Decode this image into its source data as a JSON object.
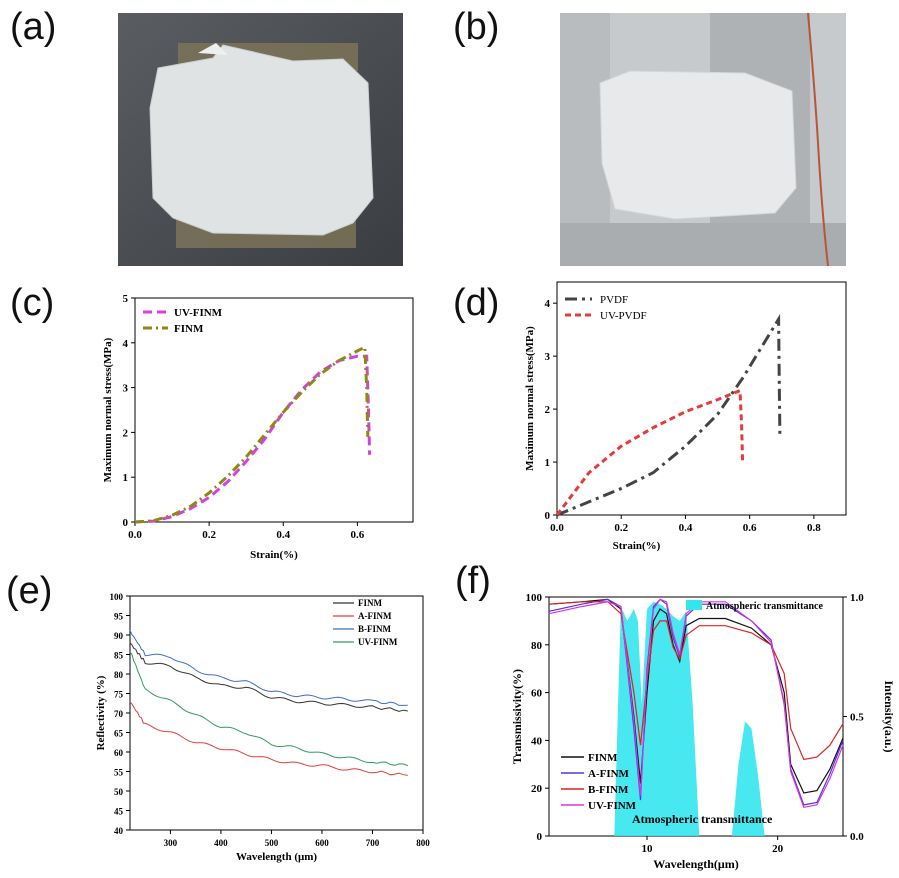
{
  "panel_labels": {
    "a": "(a)",
    "b": "(b)",
    "c": "(c)",
    "d": "(d)",
    "e": "(e)",
    "f": "(f)"
  },
  "colors": {
    "uv_finm_c": "#d63fe0",
    "finm_c": "#8c8a12",
    "pvdf": "#444444",
    "uv_pvdf": "#e83a3a",
    "e_finm": "#333333",
    "e_afinm": "#e0403f",
    "e_bfinm": "#3c6fd0",
    "e_uvfinm": "#2e9e5e",
    "f_finm": "#111111",
    "f_afinm": "#5533dd",
    "f_bfinm": "#dd2222",
    "f_uvfinm": "#dd33dd",
    "atm": "#33e6ee"
  },
  "chart_data": [
    {
      "id": "c",
      "type": "line",
      "xlabel": "Strain(%)",
      "ylabel": "Maximum normal stress(MPa)",
      "xlim": [
        0,
        0.75
      ],
      "ylim": [
        0,
        5
      ],
      "xticks": [
        "0.0",
        "0.2",
        "0.4",
        "0.6"
      ],
      "xtick_values": [
        0,
        0.2,
        0.4,
        0.6
      ],
      "yticks": [
        "0",
        "1",
        "2",
        "3",
        "4",
        "5"
      ],
      "ytick_values": [
        0,
        1,
        2,
        3,
        4,
        5
      ],
      "legend_position": "top-left",
      "series": [
        {
          "name": "UV-FINM",
          "x": [
            0,
            0.05,
            0.1,
            0.15,
            0.2,
            0.25,
            0.3,
            0.35,
            0.4,
            0.45,
            0.5,
            0.55,
            0.6,
            0.625,
            0.63,
            0.633
          ],
          "y": [
            0,
            0.02,
            0.12,
            0.3,
            0.55,
            0.9,
            1.35,
            1.85,
            2.45,
            2.95,
            3.35,
            3.6,
            3.7,
            3.7,
            2.5,
            1.5
          ]
        },
        {
          "name": "FINM",
          "x": [
            0,
            0.05,
            0.1,
            0.15,
            0.2,
            0.25,
            0.3,
            0.35,
            0.4,
            0.45,
            0.5,
            0.55,
            0.6,
            0.62,
            0.625,
            0.628
          ],
          "y": [
            0,
            0.03,
            0.15,
            0.35,
            0.65,
            1.02,
            1.45,
            1.95,
            2.45,
            2.9,
            3.3,
            3.6,
            3.82,
            3.9,
            3.0,
            1.9
          ]
        }
      ]
    },
    {
      "id": "d",
      "type": "line",
      "xlabel": "Strain(%)",
      "ylabel": "Maximum normal stress(MPa)",
      "xlim": [
        0,
        0.9
      ],
      "ylim": [
        0,
        4.4
      ],
      "xticks": [
        "0.0",
        "0.2",
        "0.4",
        "0.6",
        "0.8"
      ],
      "xtick_values": [
        0,
        0.2,
        0.4,
        0.6,
        0.8
      ],
      "yticks": [
        "0",
        "1",
        "2",
        "3",
        "4"
      ],
      "ytick_values": [
        0,
        1,
        2,
        3,
        4
      ],
      "legend_position": "top-left",
      "series": [
        {
          "name": "PVDF",
          "x": [
            0,
            0.1,
            0.2,
            0.3,
            0.4,
            0.5,
            0.58,
            0.65,
            0.69,
            0.692,
            0.694
          ],
          "y": [
            0,
            0.25,
            0.5,
            0.8,
            1.3,
            1.9,
            2.6,
            3.3,
            3.7,
            2.6,
            1.5
          ]
        },
        {
          "name": "UV-PVDF",
          "x": [
            0,
            0.1,
            0.2,
            0.3,
            0.4,
            0.5,
            0.57,
            0.575,
            0.578
          ],
          "y": [
            0,
            0.8,
            1.3,
            1.65,
            1.95,
            2.18,
            2.35,
            1.7,
            1.0
          ]
        }
      ]
    },
    {
      "id": "e",
      "type": "line",
      "xlabel": "Wavelength (μm)",
      "ylabel": "Reflectivity (%)",
      "xlim": [
        220,
        800
      ],
      "ylim": [
        40,
        100
      ],
      "xticks": [
        "300",
        "400",
        "500",
        "600",
        "700",
        "800"
      ],
      "xtick_values": [
        300,
        400,
        500,
        600,
        700,
        800
      ],
      "yticks": [
        "40",
        "45",
        "50",
        "55",
        "60",
        "65",
        "70",
        "75",
        "80",
        "85",
        "90",
        "95",
        "100"
      ],
      "ytick_values": [
        40,
        45,
        50,
        55,
        60,
        65,
        70,
        75,
        80,
        85,
        90,
        95,
        100
      ],
      "legend_position": "top-right",
      "series": [
        {
          "name": "FINM",
          "x": [
            220,
            250,
            300,
            350,
            400,
            450,
            500,
            550,
            600,
            650,
            700,
            770
          ],
          "y": [
            88,
            83,
            82,
            79,
            77,
            76.5,
            74,
            73,
            72.5,
            72,
            71.5,
            70.5
          ]
        },
        {
          "name": "A-FINM",
          "x": [
            220,
            250,
            300,
            350,
            400,
            450,
            500,
            550,
            600,
            650,
            700,
            770
          ],
          "y": [
            73,
            67,
            65,
            62.5,
            61,
            59.5,
            58,
            57,
            56.5,
            55.5,
            55,
            54
          ]
        },
        {
          "name": "B-FINM",
          "x": [
            220,
            250,
            300,
            350,
            400,
            450,
            500,
            550,
            600,
            650,
            700,
            770
          ],
          "y": [
            91,
            85,
            84.5,
            81,
            79,
            78,
            75.5,
            74.5,
            74,
            73.5,
            73,
            72
          ]
        },
        {
          "name": "UV-FINM",
          "x": [
            220,
            250,
            300,
            350,
            400,
            450,
            500,
            550,
            600,
            650,
            700,
            770
          ],
          "y": [
            86,
            76,
            73,
            69.5,
            66.5,
            65,
            62,
            61,
            59.5,
            58.5,
            57.5,
            56.5
          ]
        }
      ]
    },
    {
      "id": "f",
      "type": "line",
      "xlabel": "Wavelength(μm)",
      "ylabel": "Transmissivity(%)",
      "ylabel2": "Intensity(a.u.)",
      "xlim": [
        2.5,
        25
      ],
      "ylim": [
        0,
        100
      ],
      "ylim2": [
        0,
        1.0
      ],
      "xticks": [
        "10",
        "20"
      ],
      "xtick_values": [
        10,
        20
      ],
      "yticks": [
        "0",
        "20",
        "40",
        "60",
        "80",
        "100"
      ],
      "ytick_values": [
        0,
        20,
        40,
        60,
        80,
        100
      ],
      "yticks2": [
        "0.0",
        "0.5",
        "1.0"
      ],
      "ytick2_values": [
        0,
        0.5,
        1.0
      ],
      "legend_position": "bottom-left",
      "atm_label": "Atmospheric transmittance",
      "atm_legend": "Atmospheric transmittance",
      "atm_x": [
        7.5,
        8.0,
        8.5,
        9.0,
        9.3,
        9.6,
        10.0,
        10.5,
        11.0,
        11.5,
        12.0,
        12.5,
        13.0,
        13.5,
        14.0,
        16.5,
        17.0,
        17.5,
        18.0,
        18.5,
        19.0
      ],
      "atm_y": [
        0,
        0.96,
        0.9,
        0.95,
        0.9,
        0.55,
        0.95,
        0.98,
        0.97,
        0.95,
        0.92,
        0.9,
        0.94,
        0.55,
        0,
        0,
        0.3,
        0.48,
        0.45,
        0.25,
        0
      ],
      "series": [
        {
          "name": "FINM",
          "x": [
            2.5,
            5,
            7,
            8,
            9,
            9.5,
            10,
            10.5,
            11,
            11.5,
            12,
            12.5,
            13,
            14,
            16,
            18,
            19.5,
            20.5,
            21,
            22,
            23,
            24,
            25
          ],
          "y": [
            97,
            98,
            99,
            95,
            50,
            22,
            60,
            90,
            95,
            93,
            80,
            73,
            88,
            91,
            91,
            87,
            80,
            60,
            30,
            18,
            19,
            28,
            41
          ]
        },
        {
          "name": "A-FINM",
          "x": [
            2.5,
            5,
            7,
            8,
            9,
            9.5,
            10,
            10.5,
            11,
            11.5,
            12,
            12.5,
            13,
            14,
            16,
            18,
            19.5,
            20.5,
            21,
            22,
            23,
            24,
            25
          ],
          "y": [
            94,
            97,
            99,
            96,
            45,
            15,
            70,
            96,
            99,
            97,
            83,
            75,
            92,
            97,
            97,
            90,
            82,
            55,
            28,
            13,
            14,
            26,
            40
          ]
        },
        {
          "name": "B-FINM",
          "x": [
            2.5,
            5,
            7,
            8,
            9,
            9.5,
            10,
            10.5,
            11,
            11.5,
            12,
            12.5,
            13,
            14,
            16,
            18,
            19.5,
            20.5,
            21,
            22,
            23,
            24,
            25
          ],
          "y": [
            97,
            98,
            98,
            93,
            60,
            38,
            65,
            86,
            90,
            90,
            79,
            74,
            84,
            88,
            88,
            85,
            80,
            68,
            45,
            32,
            33,
            38,
            47
          ]
        },
        {
          "name": "UV-FINM",
          "x": [
            2.5,
            5,
            7,
            8,
            9,
            9.5,
            10,
            10.5,
            11,
            11.5,
            12,
            12.5,
            13,
            14,
            16,
            18,
            19.5,
            20.5,
            21,
            22,
            23,
            24,
            25
          ],
          "y": [
            93,
            96,
            98,
            96,
            48,
            17,
            68,
            95,
            99,
            98,
            85,
            76,
            93,
            98,
            98,
            90,
            81,
            56,
            27,
            12,
            13,
            24,
            38
          ]
        }
      ]
    }
  ]
}
